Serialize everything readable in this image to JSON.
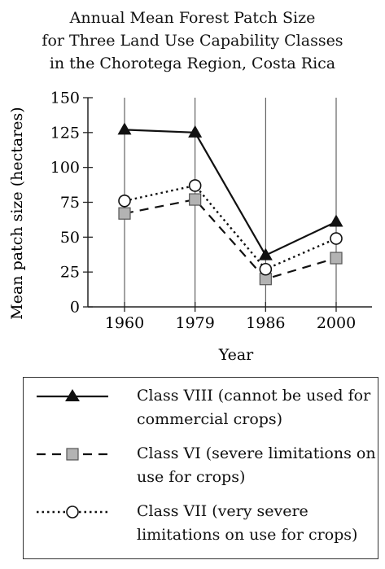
{
  "title_lines": [
    "Annual Mean Forest Patch Size",
    "for Three Land Use Capability Classes",
    "in the Chorotega Region, Costa Rica"
  ],
  "chart_data": {
    "type": "line",
    "title": "Annual Mean Forest Patch Size for Three Land Use Capability Classes in the Chorotega Region, Costa Rica",
    "xlabel": "Year",
    "ylabel": "Mean patch size (hectares)",
    "categories": [
      "1960",
      "1979",
      "1986",
      "2000"
    ],
    "ylim": [
      0,
      150
    ],
    "yticks": [
      0,
      25,
      50,
      75,
      100,
      125,
      150
    ],
    "grid": "vertical lines at each year",
    "legend_position": "below chart",
    "series": [
      {
        "name_lines": [
          "Class VIII (cannot be used for",
          "commercial crops)"
        ],
        "values": [
          127,
          125,
          37,
          61
        ],
        "line_style": "solid",
        "marker": "filled-triangle",
        "color": "#111111"
      },
      {
        "name_lines": [
          "Class VI (severe limitations on",
          "use for crops)"
        ],
        "values": [
          67,
          77,
          20,
          35
        ],
        "line_style": "dashed",
        "marker": "gray-square",
        "color": "#111111",
        "marker_fill": "#b3b3b3"
      },
      {
        "name_lines": [
          "Class VII (very severe",
          "limitations on use for crops)"
        ],
        "values": [
          76,
          87,
          27,
          49
        ],
        "line_style": "dotted",
        "marker": "open-circle",
        "color": "#111111"
      }
    ]
  }
}
